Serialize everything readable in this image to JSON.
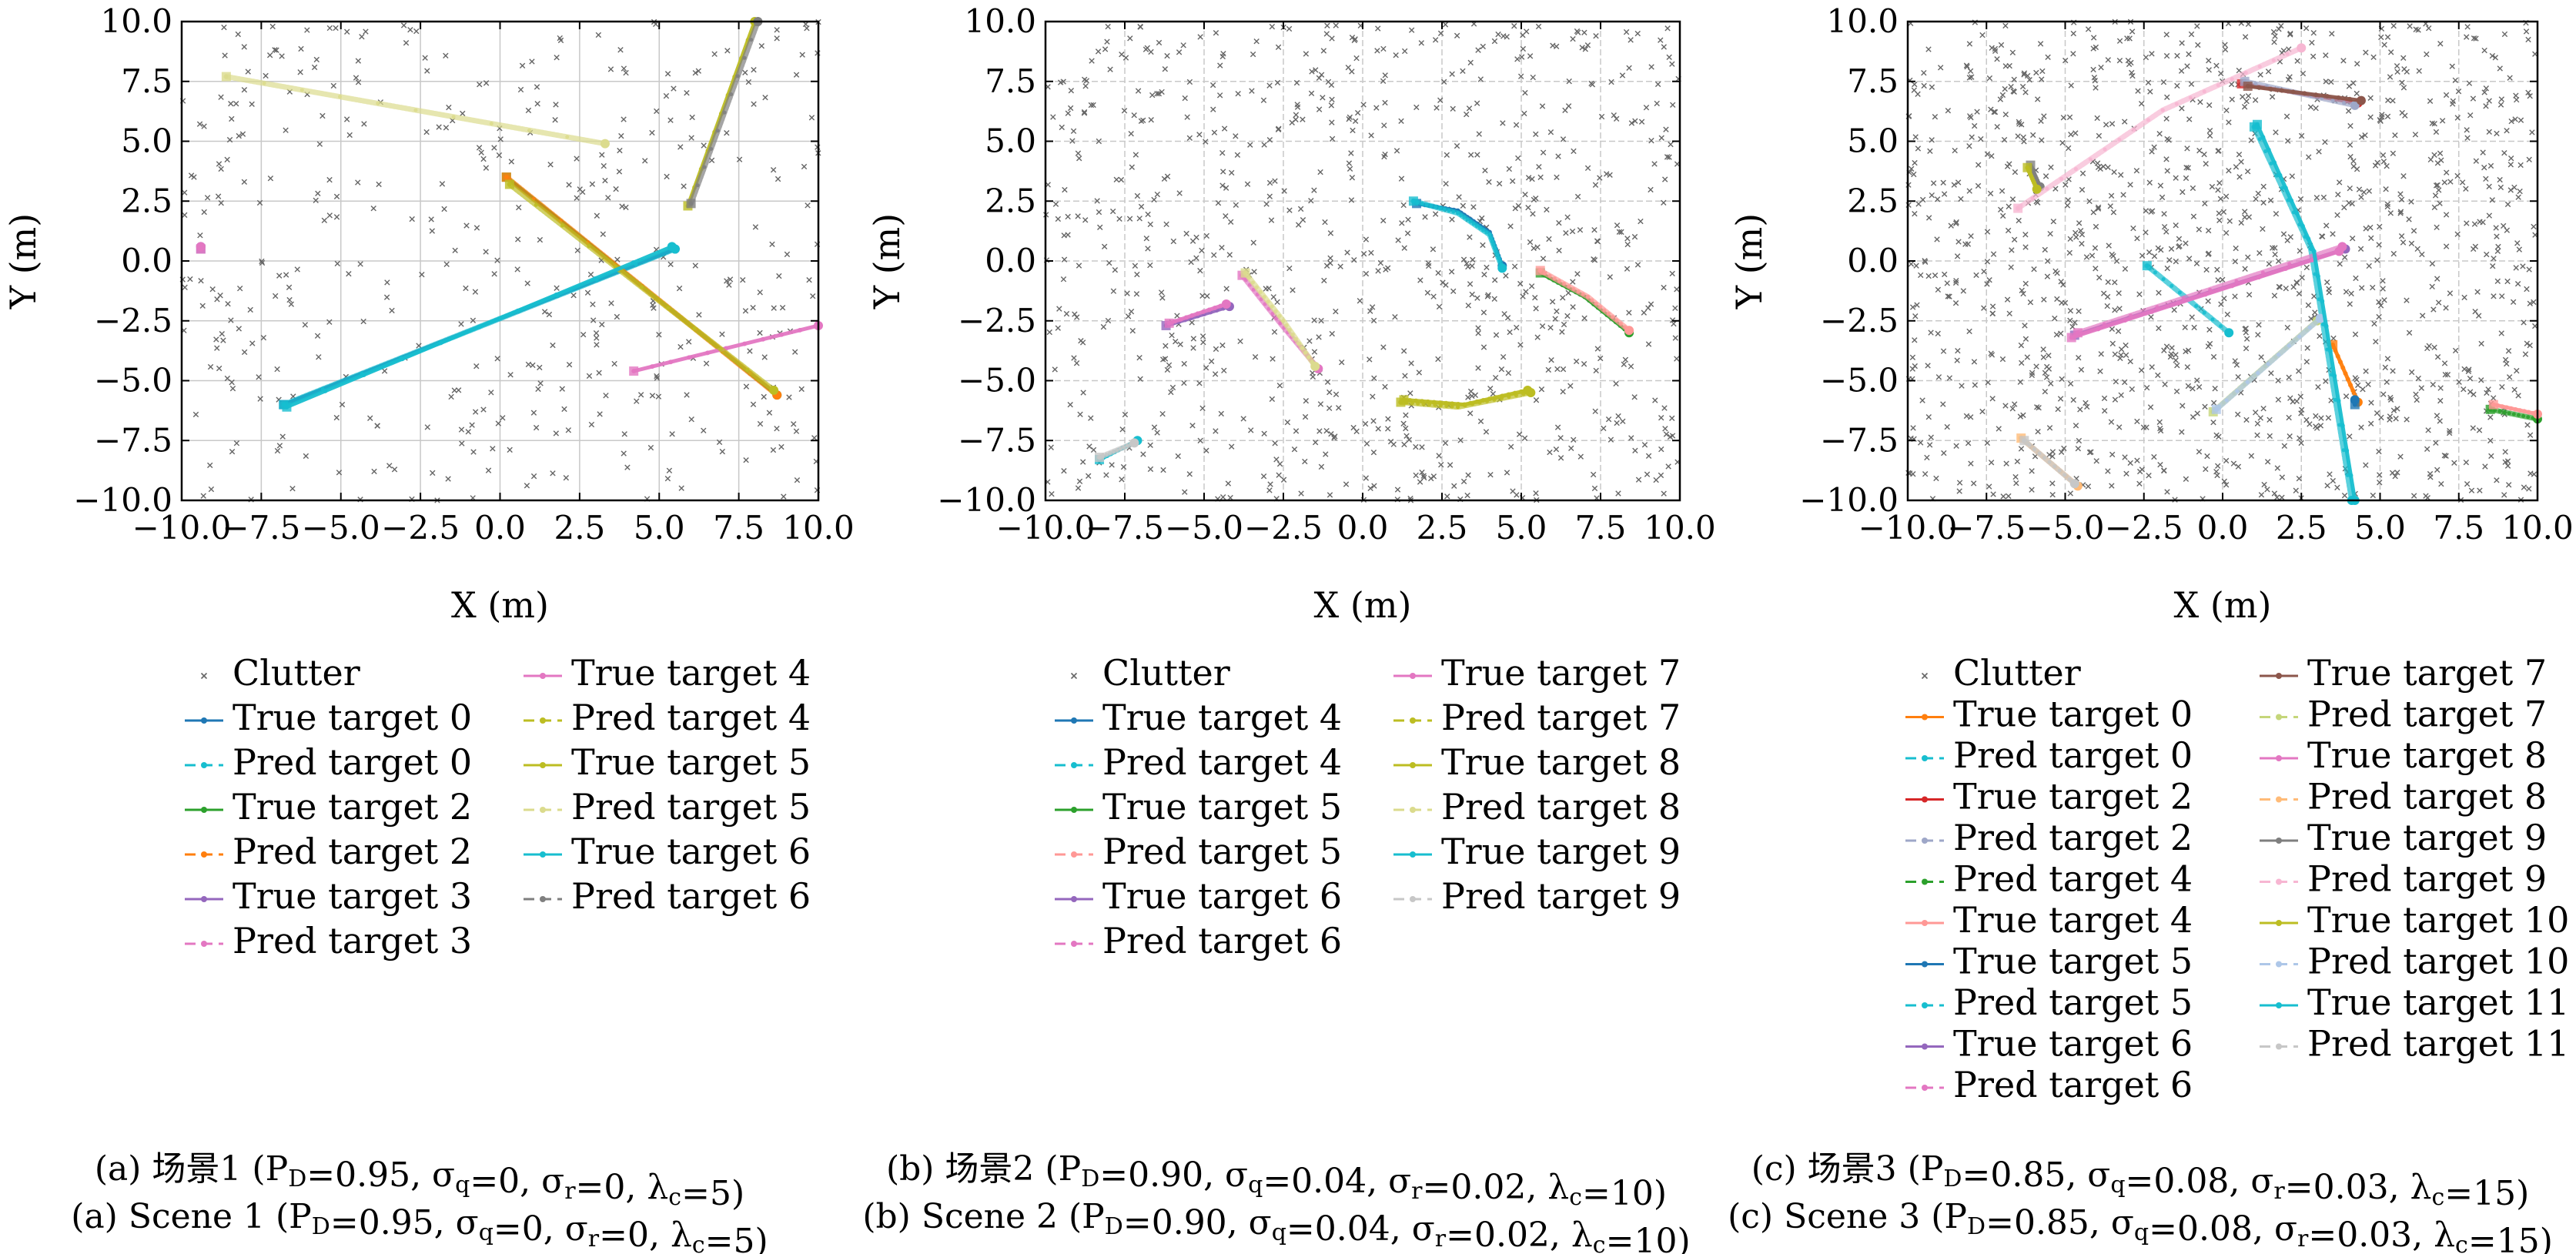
{
  "chart_data": [
    {
      "type": "scatter",
      "xlabel": "X (m)",
      "ylabel": "Y (m)",
      "xlim": [
        -10,
        10
      ],
      "ylim": [
        -10,
        10
      ],
      "xticks": [
        -10,
        -7.5,
        -5,
        -2.5,
        0,
        2.5,
        5,
        7.5,
        10
      ],
      "yticks": [
        -10,
        -7.5,
        -5,
        -2.5,
        0,
        2.5,
        5,
        7.5,
        10
      ],
      "grid": true,
      "legend_position": "below",
      "legend_columns": 2,
      "clutter_label": "Clutter",
      "clutter_count": 420,
      "series": [
        {
          "name": "True target 0",
          "color": "#1f77b4",
          "points": [
            [
              -6.8,
              -6.0
            ],
            [
              5.5,
              0.5
            ]
          ]
        },
        {
          "name": "Pred target 0",
          "color": "#17becf",
          "points": [
            [
              -6.8,
              -6.0
            ],
            [
              5.5,
              0.5
            ]
          ]
        },
        {
          "name": "True target 2",
          "color": "#2ca02c",
          "points": [
            [
              0.2,
              3.5
            ],
            [
              8.7,
              -5.6
            ]
          ]
        },
        {
          "name": "Pred target 2",
          "color": "#ff7f0e",
          "points": [
            [
              0.2,
              3.5
            ],
            [
              8.7,
              -5.6
            ]
          ]
        },
        {
          "name": "True target 3",
          "color": "#9467bd",
          "points": [
            [
              -9.4,
              0.5
            ],
            [
              -9.4,
              0.6
            ]
          ]
        },
        {
          "name": "Pred target 3",
          "color": "#e377c2",
          "points": [
            [
              -9.4,
              0.5
            ],
            [
              -9.4,
              0.6
            ]
          ]
        },
        {
          "name": "True target 4",
          "color": "#e377c2",
          "points": [
            [
              4.2,
              -4.6
            ],
            [
              10.0,
              -2.7
            ]
          ]
        },
        {
          "name": "Pred target 4",
          "color": "#bcbd22",
          "points": [
            [
              0.3,
              3.2
            ],
            [
              8.6,
              -5.4
            ]
          ]
        },
        {
          "name": "True target 5",
          "color": "#bcbd22",
          "points": [
            [
              5.9,
              2.3
            ],
            [
              8.0,
              10.0
            ]
          ]
        },
        {
          "name": "Pred target 5",
          "color": "#dbdb8d",
          "points": [
            [
              -8.6,
              7.7
            ],
            [
              3.3,
              4.9
            ]
          ]
        },
        {
          "name": "True target 6",
          "color": "#17becf",
          "points": [
            [
              -6.7,
              -6.1
            ],
            [
              5.4,
              0.6
            ]
          ]
        },
        {
          "name": "Pred target 6",
          "color": "#7f7f7f",
          "points": [
            [
              6.0,
              2.4
            ],
            [
              8.1,
              10.0
            ]
          ]
        }
      ]
    },
    {
      "type": "scatter",
      "xlabel": "X (m)",
      "ylabel": "Y (m)",
      "xlim": [
        -10,
        10
      ],
      "ylim": [
        -10,
        10
      ],
      "xticks": [
        -10,
        -7.5,
        -5,
        -2.5,
        0,
        2.5,
        5,
        7.5,
        10
      ],
      "yticks": [
        -10,
        -7.5,
        -5,
        -2.5,
        0,
        2.5,
        5,
        7.5,
        10
      ],
      "grid": true,
      "legend_position": "below",
      "legend_columns": 2,
      "clutter_label": "Clutter",
      "clutter_count": 800,
      "series": [
        {
          "name": "True target 4",
          "color": "#1f77b4",
          "points": [
            [
              1.7,
              2.4
            ],
            [
              3.0,
              2.1
            ],
            [
              4.0,
              1.2
            ],
            [
              4.4,
              -0.2
            ]
          ]
        },
        {
          "name": "Pred target 4",
          "color": "#17becf",
          "points": [
            [
              1.6,
              2.5
            ],
            [
              3.0,
              2.0
            ],
            [
              4.0,
              1.1
            ],
            [
              4.4,
              -0.3
            ]
          ]
        },
        {
          "name": "True target 5",
          "color": "#2ca02c",
          "points": [
            [
              5.6,
              -0.5
            ],
            [
              7.0,
              -1.5
            ],
            [
              8.4,
              -3.0
            ]
          ]
        },
        {
          "name": "Pred target 5",
          "color": "#ff9896",
          "points": [
            [
              5.6,
              -0.4
            ],
            [
              7.1,
              -1.5
            ],
            [
              8.4,
              -2.9
            ]
          ]
        },
        {
          "name": "True target 6",
          "color": "#9467bd",
          "points": [
            [
              -6.2,
              -2.7
            ],
            [
              -4.2,
              -1.9
            ]
          ]
        },
        {
          "name": "Pred target 6",
          "color": "#e377c2",
          "points": [
            [
              -3.8,
              -0.6
            ],
            [
              -2.6,
              -2.6
            ],
            [
              -1.4,
              -4.5
            ]
          ]
        },
        {
          "name": "True target 7",
          "color": "#e377c2",
          "points": [
            [
              -6.1,
              -2.6
            ],
            [
              -4.3,
              -1.8
            ]
          ]
        },
        {
          "name": "Pred target 7",
          "color": "#bcbd22",
          "points": [
            [
              1.2,
              -5.9
            ],
            [
              3.0,
              -6.1
            ],
            [
              5.3,
              -5.5
            ]
          ]
        },
        {
          "name": "True target 8",
          "color": "#bcbd22",
          "points": [
            [
              1.3,
              -5.8
            ],
            [
              3.2,
              -6.0
            ],
            [
              5.2,
              -5.4
            ]
          ]
        },
        {
          "name": "Pred target 8",
          "color": "#dbdb8d",
          "points": [
            [
              -3.7,
              -0.5
            ],
            [
              -2.5,
              -2.5
            ],
            [
              -1.5,
              -4.4
            ]
          ]
        },
        {
          "name": "True target 9",
          "color": "#17becf",
          "points": [
            [
              -8.3,
              -8.3
            ],
            [
              -7.1,
              -7.5
            ]
          ]
        },
        {
          "name": "Pred target 9",
          "color": "#c7c7c7",
          "points": [
            [
              -8.3,
              -8.2
            ],
            [
              -7.2,
              -7.6
            ]
          ]
        }
      ]
    },
    {
      "type": "scatter",
      "xlabel": "X (m)",
      "ylabel": "Y (m)",
      "xlim": [
        -10,
        10
      ],
      "ylim": [
        -10,
        10
      ],
      "xticks": [
        -10,
        -7.5,
        -5,
        -2.5,
        0,
        2.5,
        5,
        7.5,
        10
      ],
      "yticks": [
        -10,
        -7.5,
        -5,
        -2.5,
        0,
        2.5,
        5,
        7.5,
        10
      ],
      "grid": true,
      "legend_position": "below",
      "legend_columns": 2,
      "clutter_label": "Clutter",
      "clutter_count": 1200,
      "series": [
        {
          "name": "True target 0",
          "color": "#ff7f0e",
          "points": [
            [
              3.5,
              -3.5
            ],
            [
              4.3,
              -5.9
            ]
          ]
        },
        {
          "name": "Pred target 0",
          "color": "#17becf",
          "points": [
            [
              -2.4,
              -0.2
            ],
            [
              0.2,
              -3.0
            ]
          ]
        },
        {
          "name": "True target 2",
          "color": "#d62728",
          "points": [
            [
              0.6,
              7.4
            ],
            [
              4.3,
              6.6
            ]
          ]
        },
        {
          "name": "Pred target 2",
          "color": "#9ea7c8",
          "points": [
            [
              0.7,
              7.5
            ],
            [
              4.2,
              6.5
            ]
          ]
        },
        {
          "name": "Pred target 4",
          "color": "#2ca02c",
          "points": [
            [
              8.5,
              -6.2
            ],
            [
              10.0,
              -6.6
            ]
          ]
        },
        {
          "name": "True target 4",
          "color": "#ff9896",
          "points": [
            [
              8.6,
              -6.0
            ],
            [
              10.0,
              -6.4
            ]
          ]
        },
        {
          "name": "True target 5",
          "color": "#1f77b4",
          "points": [
            [
              4.2,
              -6.0
            ],
            [
              4.2,
              -5.8
            ]
          ]
        },
        {
          "name": "Pred target 5",
          "color": "#17becf",
          "points": [
            [
              1.0,
              5.6
            ],
            [
              2.8,
              0.5
            ],
            [
              4.1,
              -10.0
            ]
          ]
        },
        {
          "name": "True target 6",
          "color": "#9467bd",
          "points": [
            [
              -4.7,
              -3.1
            ],
            [
              3.9,
              0.5
            ]
          ]
        },
        {
          "name": "Pred target 6",
          "color": "#e377c2",
          "points": [
            [
              -4.6,
              -3.0
            ],
            [
              3.8,
              0.6
            ]
          ]
        },
        {
          "name": "True target 7",
          "color": "#8c564b",
          "points": [
            [
              0.8,
              7.3
            ],
            [
              4.4,
              6.7
            ]
          ]
        },
        {
          "name": "Pred target 7",
          "color": "#c5d67a",
          "points": [
            [
              -0.3,
              -6.3
            ],
            [
              3.0,
              -2.5
            ]
          ]
        },
        {
          "name": "True target 8",
          "color": "#e377c2",
          "points": [
            [
              -4.8,
              -3.2
            ],
            [
              3.7,
              0.4
            ]
          ]
        },
        {
          "name": "Pred target 8",
          "color": "#ffbb78",
          "points": [
            [
              -6.4,
              -7.4
            ],
            [
              -4.6,
              -9.4
            ]
          ]
        },
        {
          "name": "True target 9",
          "color": "#7f7f7f",
          "points": [
            [
              -6.1,
              4.0
            ],
            [
              -5.8,
              3.1
            ]
          ]
        },
        {
          "name": "Pred target 9",
          "color": "#f7b6d2",
          "points": [
            [
              -6.5,
              2.2
            ],
            [
              -1.9,
              6.3
            ],
            [
              2.5,
              8.9
            ]
          ]
        },
        {
          "name": "True target 10",
          "color": "#bcbd22",
          "points": [
            [
              -6.2,
              3.9
            ],
            [
              -5.9,
              3.0
            ]
          ]
        },
        {
          "name": "Pred target 10",
          "color": "#aec7e8",
          "points": [
            [
              -0.2,
              -6.2
            ],
            [
              3.1,
              -2.4
            ]
          ]
        },
        {
          "name": "True target 11",
          "color": "#17becf",
          "points": [
            [
              1.1,
              5.7
            ],
            [
              2.9,
              0.4
            ],
            [
              4.2,
              -10.0
            ]
          ]
        },
        {
          "name": "Pred target 11",
          "color": "#c7c7c7",
          "points": [
            [
              -6.3,
              -7.5
            ],
            [
              -4.7,
              -9.3
            ]
          ]
        }
      ]
    }
  ],
  "captions": [
    {
      "line_cn": "(a) 场景1 (P_D=0.95, σ_q=0, σ_r=0, λ_c=5)",
      "line_en": "(a) Scene 1 (P_D=0.95, σ_q=0, σ_r=0, λ_c=5)"
    },
    {
      "line_cn": "(b) 场景2 (P_D=0.90, σ_q=0.04, σ_r=0.02, λ_c=10)",
      "line_en": "(b) Scene 2 (P_D=0.90, σ_q=0.04, σ_r=0.02, λ_c=10)"
    },
    {
      "line_cn": "(c) 场景3 (P_D=0.85, σ_q=0.08, σ_r=0.03, λ_c=15)",
      "line_en": "(c) Scene 3 (P_D=0.85, σ_q=0.08, σ_r=0.03, λ_c=15)"
    }
  ],
  "colors": {
    "clutter": "#666666",
    "grid": "#c8c8c8",
    "axis": "#000000"
  }
}
